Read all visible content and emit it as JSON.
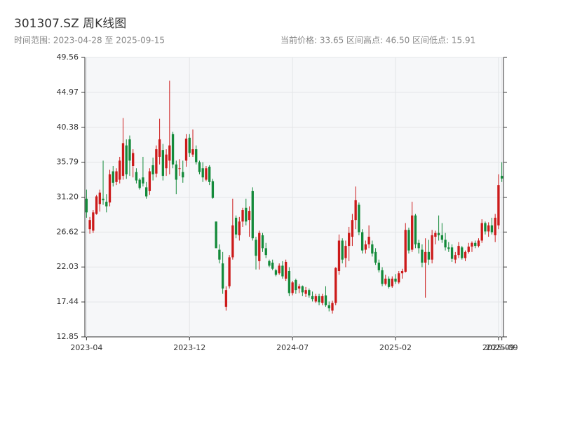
{
  "chart_data": {
    "type": "candlestick",
    "title": "301307.SZ 周K线图",
    "subtitle": "时间范围: 2023-04-28 至 2025-09-15",
    "stats": [
      "当前价格: 33.65",
      "区间高点: 46.50",
      "区间低点: 15.91"
    ],
    "up_color": "#cc1a1a",
    "down_color": "#138a3a",
    "grid": true,
    "ylim": [
      12.85,
      49.56
    ],
    "yticks": [
      12.85,
      17.44,
      22.03,
      26.62,
      {
        "value": 31.2,
        "label": "31.20"
      },
      35.79,
      40.38,
      44.97,
      49.56
    ],
    "categories": [
      "2023-04",
      null,
      null,
      null,
      null,
      null,
      null,
      null,
      null,
      null,
      null,
      null,
      null,
      null,
      null,
      null,
      null,
      null,
      null,
      null,
      null,
      null,
      null,
      null,
      null,
      null,
      null,
      null,
      null,
      null,
      null,
      "2023-12",
      null,
      null,
      null,
      null,
      null,
      null,
      null,
      null,
      null,
      null,
      null,
      null,
      null,
      null,
      null,
      null,
      null,
      null,
      null,
      null,
      null,
      null,
      null,
      null,
      null,
      null,
      null,
      null,
      null,
      null,
      "2024-07",
      null,
      null,
      null,
      null,
      null,
      null,
      null,
      null,
      null,
      null,
      null,
      null,
      null,
      null,
      null,
      null,
      null,
      null,
      null,
      null,
      null,
      null,
      null,
      null,
      null,
      null,
      null,
      null,
      null,
      null,
      "2025-02",
      null,
      null,
      null,
      null,
      null,
      null,
      null,
      null,
      null,
      null,
      null,
      null,
      null,
      null,
      null,
      null,
      null,
      null,
      null,
      null,
      null,
      null,
      null,
      null,
      null,
      null,
      null,
      null,
      null,
      null,
      "2025-09",
      "2025-09"
    ],
    "ohlc": [
      [
        31,
        32.2,
        28.5,
        29.2
      ],
      [
        27,
        28.6,
        26.4,
        28.2
      ],
      [
        26.8,
        29.5,
        26.5,
        29.2
      ],
      [
        29,
        31.5,
        28.9,
        31.3
      ],
      [
        30.3,
        32.2,
        29.3,
        31.8
      ],
      [
        31,
        36,
        30.2,
        30.8
      ],
      [
        30.6,
        31.6,
        29.2,
        30
      ],
      [
        30.5,
        34.8,
        30,
        34.2
      ],
      [
        34.6,
        35.3,
        32.6,
        33.1
      ],
      [
        33.2,
        35,
        32.8,
        34.6
      ],
      [
        33.5,
        36.5,
        33,
        36
      ],
      [
        34,
        41.6,
        33.5,
        38.3
      ],
      [
        38,
        38.8,
        33.6,
        34.2
      ],
      [
        38.8,
        39.3,
        34,
        36
      ],
      [
        35.3,
        37.5,
        33.8,
        37
      ],
      [
        34.5,
        35,
        33,
        33.4
      ],
      [
        33.5,
        33.7,
        32.2,
        32.4
      ],
      [
        33.8,
        36.5,
        32.6,
        33
      ],
      [
        32.5,
        33.2,
        31,
        31.3
      ],
      [
        32,
        35,
        31.5,
        34.6
      ],
      [
        35.4,
        36.4,
        33.4,
        34.2
      ],
      [
        34.3,
        38,
        33.8,
        37.5
      ],
      [
        36.5,
        41.5,
        35.5,
        38.8
      ],
      [
        37.4,
        38.2,
        33.4,
        34
      ],
      [
        35,
        37.5,
        34,
        36.8
      ],
      [
        36,
        46.5,
        34.2,
        38
      ],
      [
        39.5,
        39.8,
        35,
        35.5
      ],
      [
        35.5,
        36,
        31.6,
        33.5
      ],
      [
        35,
        36.2,
        34,
        35
      ],
      [
        34.5,
        36,
        33.1,
        33.8
      ],
      [
        36,
        39.5,
        35.2,
        38.9
      ],
      [
        39,
        39.5,
        36.5,
        37
      ],
      [
        36.8,
        40.1,
        36.5,
        37.5
      ],
      [
        37.5,
        38,
        35.5,
        35.8
      ],
      [
        35.8,
        36,
        34.2,
        34.5
      ],
      [
        35,
        35.8,
        33.2,
        33.8
      ],
      [
        33.5,
        35.3,
        33.3,
        35
      ],
      [
        35.2,
        35.4,
        32.8,
        33.2
      ],
      [
        33.3,
        33.6,
        31,
        31.1
      ],
      [
        28,
        28,
        24.5,
        24.5
      ],
      [
        24.3,
        25,
        22.5,
        23
      ],
      [
        22.5,
        24,
        18.5,
        19.2
      ],
      [
        16.8,
        19.5,
        16.3,
        19
      ],
      [
        19.5,
        23.6,
        19.2,
        23.3
      ],
      [
        23.3,
        31,
        23,
        27.5
      ],
      [
        28.5,
        28.8,
        25.8,
        26.3
      ],
      [
        26.2,
        28.6,
        25.5,
        28
      ],
      [
        28,
        29.8,
        27.3,
        29.5
      ],
      [
        29.8,
        31,
        27.5,
        28
      ],
      [
        28.2,
        30,
        26,
        29.4
      ],
      [
        32,
        32.5,
        25.5,
        25.8
      ],
      [
        25.6,
        26,
        21.7,
        23.5
      ],
      [
        22.8,
        26.8,
        21.7,
        26.5
      ],
      [
        26.2,
        26.5,
        24,
        24.5
      ],
      [
        24.5,
        25.2,
        23.2,
        23.6
      ],
      [
        22.8,
        23,
        22,
        22.2
      ],
      [
        22.6,
        23,
        21.6,
        21.8
      ],
      [
        21.6,
        21.8,
        20.8,
        21
      ],
      [
        21.2,
        22.5,
        21,
        22.2
      ],
      [
        22.2,
        22.8,
        20.5,
        20.8
      ],
      [
        20.5,
        23,
        20.2,
        22.7
      ],
      [
        21.5,
        22,
        18.2,
        18.6
      ],
      [
        18.6,
        20.2,
        18.3,
        20
      ],
      [
        20.3,
        20.5,
        18.5,
        19
      ],
      [
        19.2,
        19.8,
        18.6,
        19.5
      ],
      [
        19.5,
        19.6,
        18.2,
        18.7
      ],
      [
        18.5,
        19.4,
        18.1,
        19
      ],
      [
        19,
        19.2,
        18,
        18.3
      ],
      [
        18.2,
        18.8,
        17.5,
        17.8
      ],
      [
        17.5,
        18.5,
        17.3,
        18.2
      ],
      [
        18.2,
        18.5,
        17,
        17.4
      ],
      [
        17.3,
        18.5,
        17,
        18.2
      ],
      [
        18.3,
        19.5,
        16.8,
        17
      ],
      [
        17,
        17.5,
        16.2,
        16.6
      ],
      [
        16.3,
        17.6,
        15.91,
        17.3
      ],
      [
        17.3,
        22,
        17,
        21.9
      ],
      [
        21.5,
        26.3,
        21,
        25.5
      ],
      [
        25.5,
        25.8,
        22.5,
        23
      ],
      [
        23.2,
        25.5,
        22,
        24.8
      ],
      [
        24.8,
        27.3,
        22.8,
        26.5
      ],
      [
        26,
        29,
        24.8,
        28.2
      ],
      [
        28.2,
        32.6,
        27,
        30.8
      ],
      [
        30.2,
        30.5,
        26.2,
        26.6
      ],
      [
        26.6,
        27,
        23.8,
        24.2
      ],
      [
        24.3,
        25.5,
        23.8,
        25
      ],
      [
        25,
        27.5,
        24.5,
        26
      ],
      [
        25,
        25.5,
        23.4,
        23.8
      ],
      [
        24,
        24.5,
        22.3,
        22.6
      ],
      [
        22.6,
        23,
        21.3,
        21.6
      ],
      [
        21.6,
        22,
        19.5,
        19.8
      ],
      [
        19.8,
        21,
        19.6,
        20.5
      ],
      [
        20.5,
        20.8,
        19.2,
        19.4
      ],
      [
        19.5,
        20.8,
        19.3,
        20.5
      ],
      [
        20.5,
        21.1,
        19.8,
        20.1
      ],
      [
        20,
        21.5,
        19.8,
        21.2
      ],
      [
        21.2,
        21.8,
        20.5,
        21.5
      ],
      [
        21.4,
        27.8,
        21.3,
        26.9
      ],
      [
        26.9,
        27.2,
        23.8,
        24.2
      ],
      [
        24.3,
        30.6,
        24,
        28.8
      ],
      [
        28.8,
        29,
        24.5,
        25
      ],
      [
        25.2,
        25.6,
        23.8,
        24.5
      ],
      [
        24.3,
        25,
        22,
        22.6
      ],
      [
        22.6,
        25.8,
        18,
        24
      ],
      [
        24,
        25.6,
        22.3,
        23
      ],
      [
        23,
        26.9,
        22.5,
        26.2
      ],
      [
        26,
        26.8,
        25,
        26.5
      ],
      [
        26.5,
        28.8,
        25.5,
        26.2
      ],
      [
        26.2,
        27.8,
        25.2,
        25.6
      ],
      [
        25.6,
        26.5,
        24.2,
        24.6
      ],
      [
        24.6,
        25.3,
        24,
        24.4
      ],
      [
        24.6,
        25,
        22.7,
        23.1
      ],
      [
        23,
        24,
        22.5,
        23.6
      ],
      [
        23.6,
        25.3,
        23.2,
        24.8
      ],
      [
        24.6,
        24.8,
        23,
        23.2
      ],
      [
        23.2,
        24.2,
        22.8,
        24
      ],
      [
        24,
        25.2,
        23.8,
        24.7
      ],
      [
        24.7,
        25.4,
        24,
        25.2
      ],
      [
        25.2,
        25.5,
        24.5,
        24.8
      ],
      [
        24.8,
        25.8,
        24.6,
        25.5
      ],
      [
        25.5,
        28.3,
        25.2,
        27.8
      ],
      [
        27.8,
        28,
        26.3,
        26.7
      ],
      [
        26.7,
        27.9,
        26,
        27.5
      ],
      [
        27.5,
        28.5,
        26.3,
        26.6
      ],
      [
        26.2,
        29,
        25.3,
        28.5
      ],
      [
        27.5,
        34.2,
        27,
        32.8
      ],
      [
        34,
        35.8,
        33.2,
        33.65
      ]
    ]
  }
}
